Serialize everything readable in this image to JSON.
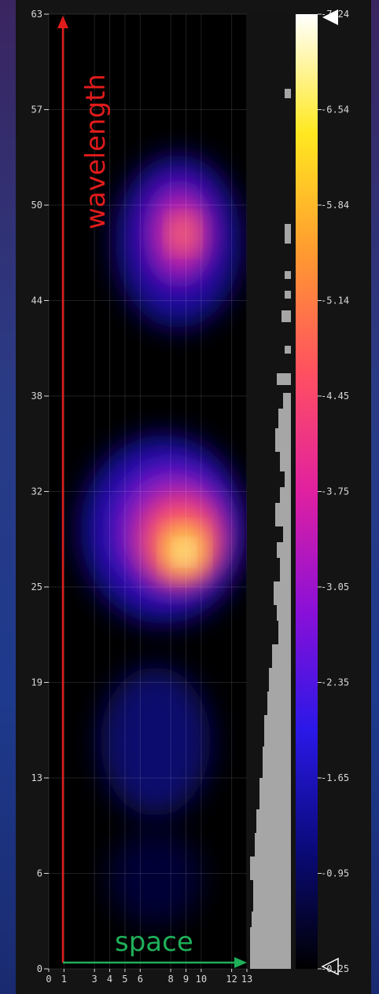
{
  "chart_data": {
    "type": "heatmap",
    "x_ticks": [
      "0",
      "1",
      "3",
      "4",
      "5",
      "6",
      "8",
      "9",
      "10",
      "12",
      "13"
    ],
    "x_tick_values": [
      0,
      1,
      3,
      4,
      5,
      6,
      8,
      9,
      10,
      12,
      13
    ],
    "y_ticks": [
      "0",
      "6",
      "13",
      "19",
      "25",
      "32",
      "38",
      "44",
      "50",
      "57",
      "63"
    ],
    "y_tick_values": [
      0,
      6.3,
      12.6,
      18.9,
      25.2,
      31.5,
      37.8,
      44.1,
      50.4,
      56.7,
      63
    ],
    "xlim": [
      0,
      13
    ],
    "ylim": [
      0,
      63
    ],
    "colorbar": {
      "ticks": [
        "0.25",
        "0.95",
        "1.65",
        "2.35",
        "3.05",
        "3.75",
        "4.45",
        "5.14",
        "5.84",
        "6.54",
        "7.24"
      ],
      "range": [
        0.25,
        7.24
      ],
      "colormap": [
        "#000000",
        "#0a0a7a",
        "#2a18e8",
        "#8a10d8",
        "#e020a0",
        "#ff5060",
        "#ff9a30",
        "#ffe820",
        "#ffffff"
      ]
    },
    "peaks": [
      {
        "x": 8.8,
        "y": 27.5,
        "value": 7.24
      },
      {
        "x": 8.8,
        "y": 48.5,
        "value": 4.6
      }
    ],
    "grid": true
  },
  "annotations": {
    "vertical_label": "wavelength",
    "horizontal_label": "space"
  },
  "colors": {
    "vertical_arrow": "#e01b1b",
    "horizontal_arrow": "#1fb05a",
    "profile_bars": "#a6a6a6"
  },
  "icons": {
    "colorbar_max_marker": "white-triangle-marker",
    "colorbar_min_marker": "outline-triangle-marker"
  }
}
